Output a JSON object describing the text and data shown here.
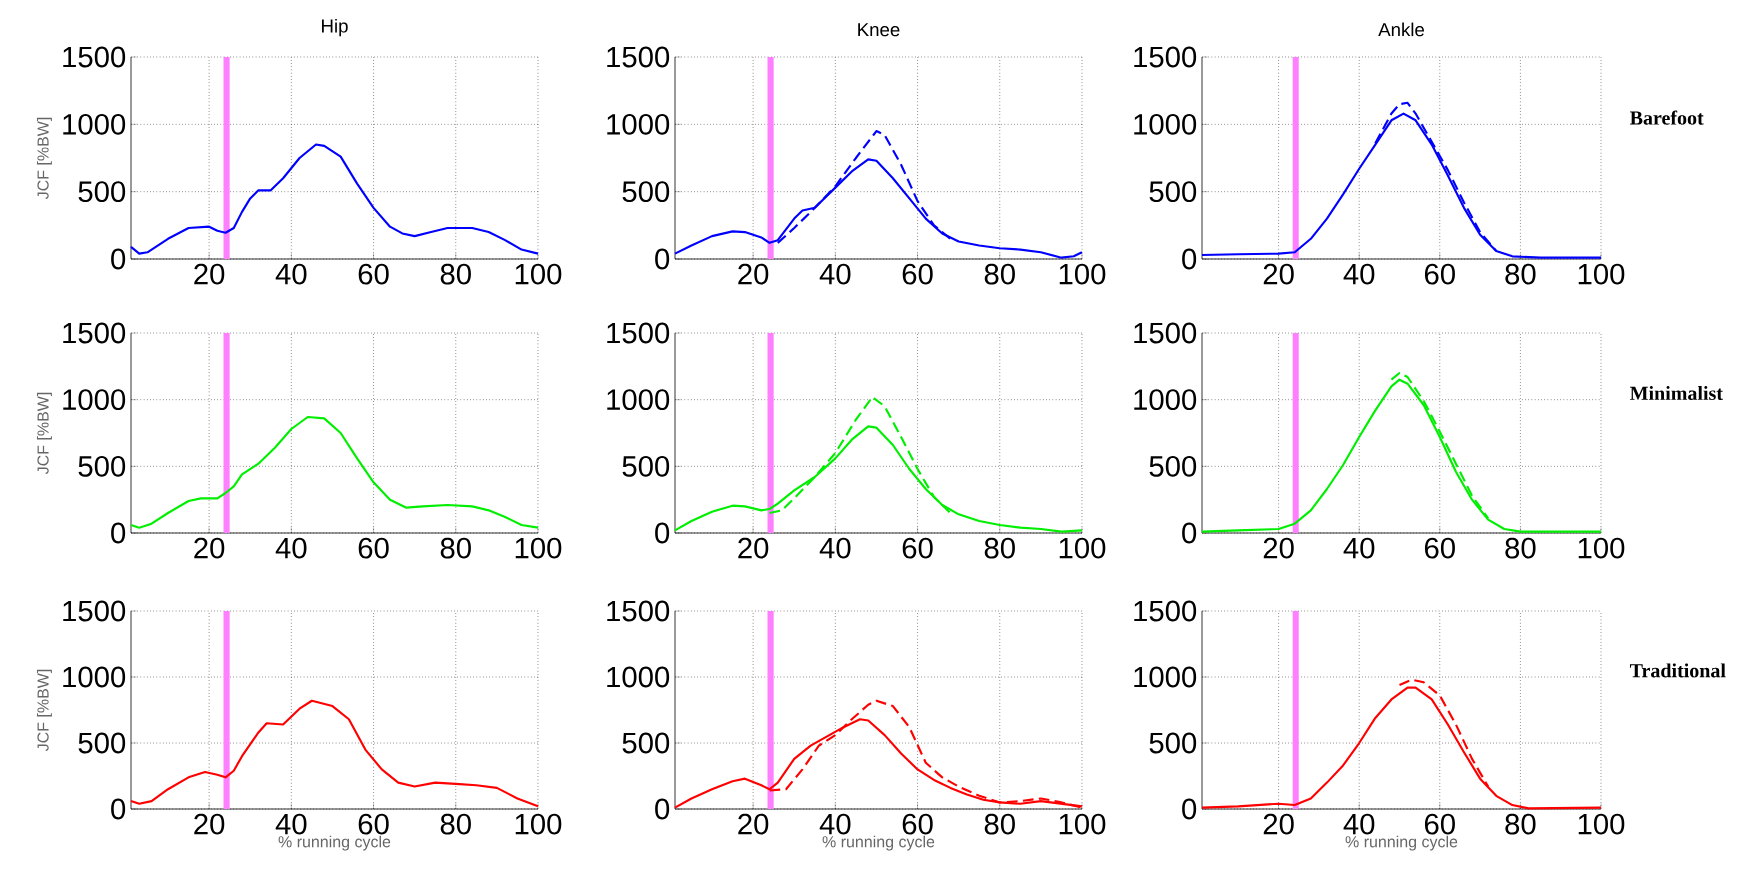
{
  "chart_data": [
    {
      "type": "line",
      "title": "Hip",
      "ylabel": "JCF [%BW]",
      "xlim": [
        1,
        100
      ],
      "ylim": [
        0,
        1500
      ],
      "xticks": [
        20,
        40,
        60,
        80,
        100
      ],
      "yticks": [
        0,
        500,
        1000,
        1500
      ],
      "grid": true,
      "bands": [
        {
          "axis": "x",
          "from": 23.5,
          "to": 25,
          "color": "#ff80ff"
        }
      ],
      "series": [
        {
          "color": "#0000ff",
          "line_style": "solid",
          "x": [
            1,
            3,
            5,
            10,
            15,
            20,
            22,
            24,
            26,
            28,
            30,
            32,
            35,
            38,
            42,
            46,
            48,
            52,
            56,
            60,
            64,
            67,
            70,
            74,
            78,
            84,
            88,
            92,
            96,
            100
          ],
          "values": [
            90,
            40,
            50,
            150,
            230,
            240,
            210,
            195,
            230,
            350,
            450,
            510,
            510,
            600,
            750,
            850,
            840,
            760,
            560,
            380,
            240,
            190,
            170,
            200,
            230,
            230,
            200,
            140,
            70,
            40
          ]
        }
      ]
    },
    {
      "type": "line",
      "title": "Knee",
      "xlim": [
        1,
        100
      ],
      "ylim": [
        0,
        1500
      ],
      "xticks": [
        20,
        40,
        60,
        80,
        100
      ],
      "yticks": [
        0,
        500,
        1000,
        1500
      ],
      "grid": true,
      "bands": [
        {
          "axis": "x",
          "from": 23.5,
          "to": 25,
          "color": "#ff80ff"
        }
      ],
      "series": [
        {
          "color": "#0000ff",
          "line_style": "solid",
          "x": [
            1,
            5,
            10,
            15,
            18,
            22,
            24,
            26,
            30,
            32,
            35,
            40,
            44,
            48,
            50,
            54,
            58,
            62,
            66,
            70,
            75,
            80,
            85,
            90,
            95,
            98,
            100
          ],
          "values": [
            40,
            100,
            170,
            205,
            200,
            160,
            120,
            140,
            300,
            360,
            380,
            530,
            650,
            740,
            730,
            600,
            450,
            300,
            190,
            130,
            100,
            80,
            70,
            50,
            10,
            20,
            50
          ]
        },
        {
          "color": "#0000ff",
          "line_style": "dashed",
          "x": [
            26,
            30,
            35,
            40,
            45,
            50,
            52,
            56,
            60,
            64,
            68
          ],
          "values": [
            120,
            230,
            380,
            540,
            750,
            950,
            920,
            700,
            430,
            250,
            150
          ]
        }
      ]
    },
    {
      "type": "line",
      "title": "Ankle",
      "annotations": [
        "Barefoot"
      ],
      "xlim": [
        1,
        100
      ],
      "ylim": [
        0,
        1500
      ],
      "xticks": [
        20,
        40,
        60,
        80,
        100
      ],
      "yticks": [
        0,
        500,
        1000,
        1500
      ],
      "grid": true,
      "bands": [
        {
          "axis": "x",
          "from": 23.5,
          "to": 25,
          "color": "#ff80ff"
        }
      ],
      "series": [
        {
          "color": "#0000ff",
          "line_style": "solid",
          "x": [
            1,
            10,
            20,
            24,
            28,
            32,
            36,
            40,
            44,
            48,
            51,
            54,
            58,
            62,
            66,
            70,
            74,
            78,
            85,
            100
          ],
          "values": [
            30,
            35,
            40,
            50,
            150,
            300,
            480,
            670,
            850,
            1030,
            1080,
            1030,
            850,
            620,
            380,
            180,
            60,
            20,
            10,
            10
          ]
        },
        {
          "color": "#0000ff",
          "line_style": "dashed",
          "x": [
            44,
            48,
            50,
            52,
            54,
            58,
            62,
            66,
            70,
            74
          ],
          "values": [
            860,
            1080,
            1150,
            1160,
            1080,
            870,
            660,
            420,
            200,
            60
          ]
        }
      ]
    },
    {
      "type": "line",
      "ylabel": "JCF [%BW]",
      "xlim": [
        1,
        100
      ],
      "ylim": [
        0,
        1500
      ],
      "xticks": [
        20,
        40,
        60,
        80,
        100
      ],
      "yticks": [
        0,
        500,
        1000,
        1500
      ],
      "grid": true,
      "bands": [
        {
          "axis": "x",
          "from": 23.5,
          "to": 25,
          "color": "#ff80ff"
        }
      ],
      "series": [
        {
          "color": "#00ee00",
          "line_style": "solid",
          "x": [
            1,
            3,
            6,
            10,
            15,
            18,
            22,
            24,
            26,
            28,
            32,
            36,
            40,
            44,
            48,
            52,
            56,
            60,
            64,
            68,
            72,
            78,
            84,
            88,
            92,
            96,
            100
          ],
          "values": [
            60,
            40,
            70,
            150,
            240,
            260,
            260,
            300,
            350,
            440,
            520,
            640,
            780,
            870,
            860,
            750,
            560,
            380,
            250,
            190,
            200,
            210,
            200,
            170,
            120,
            60,
            40
          ]
        }
      ]
    },
    {
      "type": "line",
      "xlim": [
        1,
        100
      ],
      "ylim": [
        0,
        1500
      ],
      "xticks": [
        20,
        40,
        60,
        80,
        100
      ],
      "yticks": [
        0,
        500,
        1000,
        1500
      ],
      "grid": true,
      "bands": [
        {
          "axis": "x",
          "from": 23.5,
          "to": 25,
          "color": "#ff80ff"
        }
      ],
      "series": [
        {
          "color": "#00ee00",
          "line_style": "solid",
          "x": [
            1,
            5,
            10,
            15,
            18,
            22,
            24,
            26,
            30,
            35,
            40,
            44,
            48,
            50,
            54,
            58,
            62,
            66,
            70,
            75,
            80,
            85,
            90,
            95,
            100
          ],
          "values": [
            20,
            90,
            160,
            205,
            200,
            170,
            180,
            220,
            320,
            420,
            560,
            700,
            800,
            790,
            660,
            480,
            330,
            210,
            140,
            90,
            60,
            40,
            30,
            10,
            20
          ]
        },
        {
          "color": "#00ee00",
          "line_style": "dashed",
          "x": [
            24,
            27,
            30,
            35,
            40,
            45,
            49,
            52,
            56,
            60,
            64,
            68
          ],
          "values": [
            150,
            170,
            260,
            420,
            600,
            850,
            1020,
            950,
            720,
            480,
            270,
            150
          ]
        }
      ]
    },
    {
      "type": "line",
      "annotations": [
        "Minimalist"
      ],
      "xlim": [
        1,
        100
      ],
      "ylim": [
        0,
        1500
      ],
      "xticks": [
        20,
        40,
        60,
        80,
        100
      ],
      "yticks": [
        0,
        500,
        1000,
        1500
      ],
      "grid": true,
      "bands": [
        {
          "axis": "x",
          "from": 23.5,
          "to": 25,
          "color": "#ff80ff"
        }
      ],
      "series": [
        {
          "color": "#00ee00",
          "line_style": "solid",
          "x": [
            1,
            10,
            20,
            24,
            28,
            32,
            36,
            40,
            44,
            48,
            50,
            52,
            56,
            60,
            64,
            68,
            72,
            76,
            80,
            100
          ],
          "values": [
            10,
            20,
            30,
            70,
            170,
            330,
            510,
            720,
            920,
            1100,
            1150,
            1120,
            960,
            720,
            460,
            250,
            100,
            30,
            10,
            10
          ]
        },
        {
          "color": "#00ee00",
          "line_style": "dashed",
          "x": [
            48,
            50,
            52,
            56,
            60,
            64,
            68,
            72
          ],
          "values": [
            1150,
            1200,
            1170,
            990,
            760,
            520,
            280,
            110
          ]
        }
      ]
    },
    {
      "type": "line",
      "xlabel": "% running cycle",
      "ylabel": "JCF [%BW]",
      "xlim": [
        1,
        100
      ],
      "ylim": [
        0,
        1500
      ],
      "xticks": [
        20,
        40,
        60,
        80,
        100
      ],
      "yticks": [
        0,
        500,
        1000,
        1500
      ],
      "grid": true,
      "bands": [
        {
          "axis": "x",
          "from": 23.5,
          "to": 25,
          "color": "#ff80ff"
        }
      ],
      "series": [
        {
          "color": "#ff0000",
          "line_style": "solid",
          "x": [
            1,
            3,
            6,
            10,
            15,
            19,
            22,
            24,
            26,
            28,
            32,
            34,
            38,
            42,
            45,
            50,
            54,
            58,
            62,
            66,
            70,
            75,
            80,
            85,
            90,
            95,
            100
          ],
          "values": [
            60,
            40,
            60,
            150,
            240,
            280,
            260,
            240,
            290,
            400,
            580,
            650,
            640,
            760,
            820,
            780,
            680,
            450,
            300,
            200,
            170,
            200,
            190,
            180,
            160,
            80,
            20
          ]
        }
      ]
    },
    {
      "type": "line",
      "xlabel": "% running cycle",
      "xlim": [
        1,
        100
      ],
      "ylim": [
        0,
        1500
      ],
      "xticks": [
        20,
        40,
        60,
        80,
        100
      ],
      "yticks": [
        0,
        500,
        1000,
        1500
      ],
      "grid": true,
      "bands": [
        {
          "axis": "x",
          "from": 23.5,
          "to": 25,
          "color": "#ff80ff"
        }
      ],
      "series": [
        {
          "color": "#ff0000",
          "line_style": "solid",
          "x": [
            1,
            5,
            10,
            15,
            18,
            22,
            24,
            26,
            30,
            34,
            38,
            42,
            46,
            48,
            52,
            56,
            60,
            64,
            68,
            72,
            76,
            80,
            85,
            90,
            95,
            100
          ],
          "values": [
            10,
            80,
            150,
            210,
            230,
            180,
            150,
            200,
            380,
            480,
            550,
            620,
            680,
            670,
            560,
            420,
            300,
            220,
            160,
            110,
            70,
            50,
            40,
            60,
            40,
            20
          ]
        },
        {
          "color": "#ff0000",
          "line_style": "dashed",
          "x": [
            24,
            28,
            32,
            36,
            40,
            44,
            48,
            50,
            54,
            58,
            62,
            66,
            70,
            75,
            80,
            85,
            90,
            95,
            100
          ],
          "values": [
            140,
            150,
            300,
            480,
            560,
            680,
            790,
            820,
            780,
            620,
            350,
            240,
            170,
            100,
            50,
            60,
            80,
            50,
            10
          ]
        }
      ]
    },
    {
      "type": "line",
      "xlabel": "% running cycle",
      "annotations": [
        "Traditional"
      ],
      "xlim": [
        1,
        100
      ],
      "ylim": [
        0,
        1500
      ],
      "xticks": [
        20,
        40,
        60,
        80,
        100
      ],
      "yticks": [
        0,
        500,
        1000,
        1500
      ],
      "grid": true,
      "bands": [
        {
          "axis": "x",
          "from": 23.5,
          "to": 25,
          "color": "#ff80ff"
        }
      ],
      "series": [
        {
          "color": "#ff0000",
          "line_style": "solid",
          "x": [
            1,
            10,
            20,
            24,
            28,
            32,
            36,
            40,
            44,
            48,
            52,
            54,
            58,
            62,
            66,
            70,
            74,
            78,
            82,
            100
          ],
          "values": [
            10,
            20,
            40,
            30,
            80,
            200,
            330,
            500,
            690,
            830,
            920,
            920,
            830,
            640,
            430,
            230,
            100,
            30,
            5,
            10
          ]
        },
        {
          "color": "#ff0000",
          "line_style": "dashed",
          "x": [
            50,
            53,
            56,
            60,
            64,
            68,
            72
          ],
          "values": [
            940,
            980,
            960,
            860,
            640,
            380,
            170
          ]
        }
      ]
    }
  ]
}
